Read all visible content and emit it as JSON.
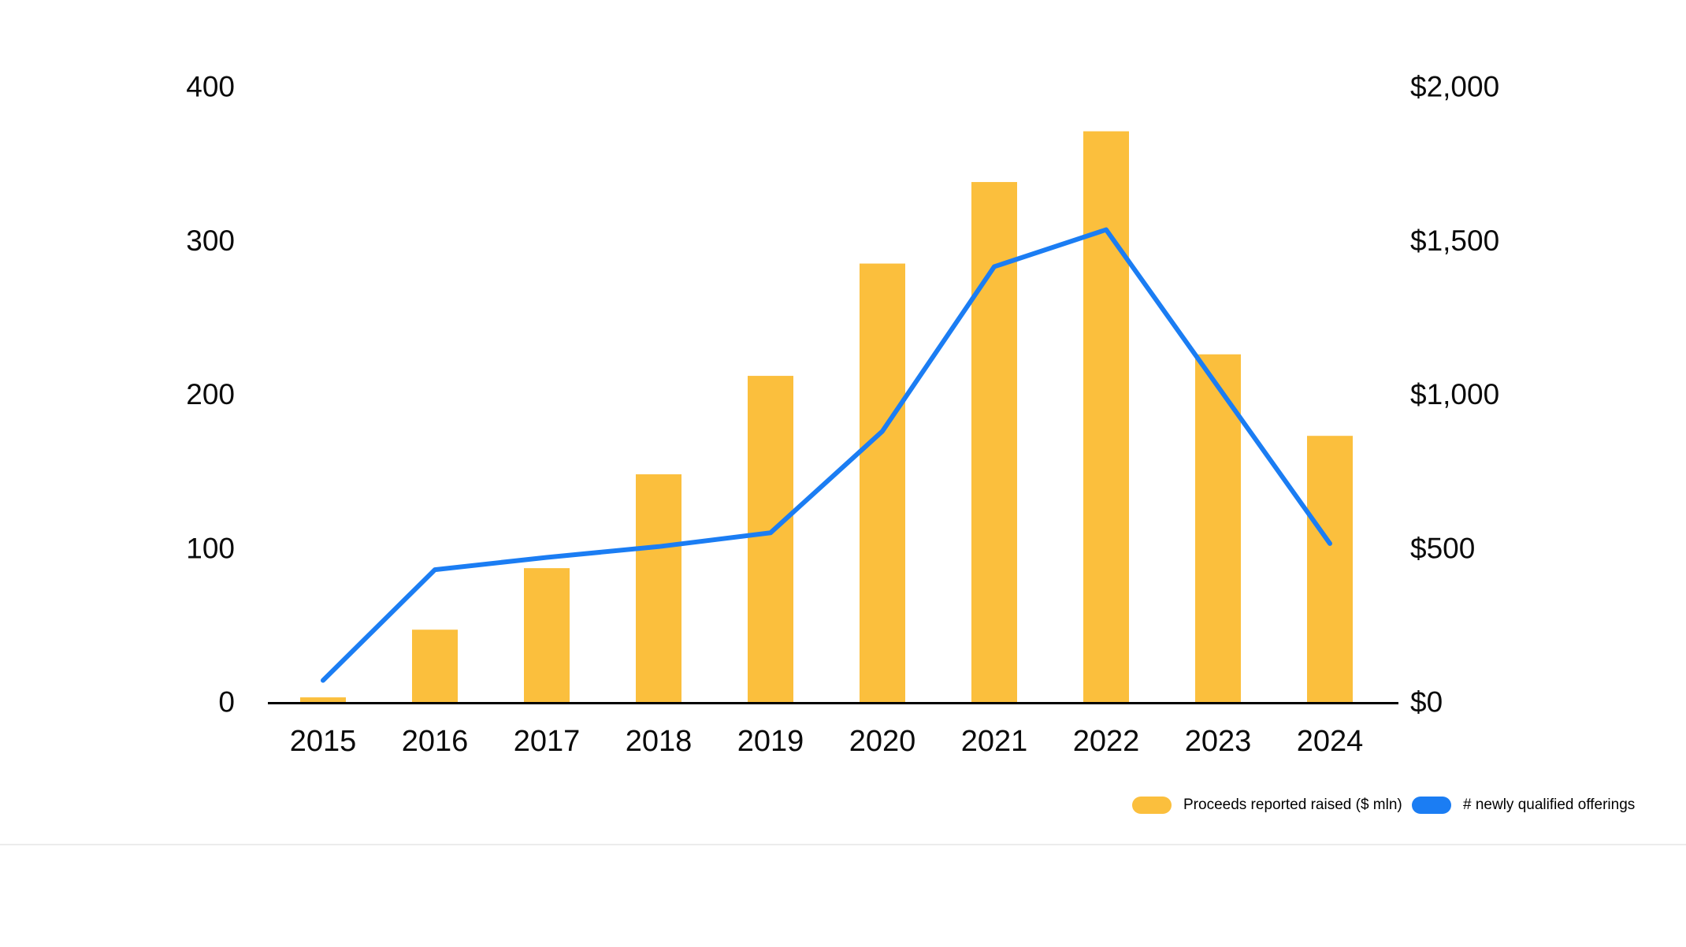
{
  "chart_data": {
    "type": "combo",
    "title": "",
    "categories": [
      "2015",
      "2016",
      "2017",
      "2018",
      "2019",
      "2020",
      "2021",
      "2022",
      "2023",
      "2024"
    ],
    "series": [
      {
        "name": "Proceeds reported raised ($ mln)",
        "type": "bar",
        "axis": "right",
        "color": "#FBBF3D",
        "values": [
          15,
          235,
          435,
          740,
          1060,
          1425,
          1690,
          1855,
          1130,
          865
        ]
      },
      {
        "name": "# newly qualified offerings",
        "type": "line",
        "axis": "left",
        "color": "#1B7DF3",
        "values": [
          14,
          86,
          94,
          101,
          110,
          176,
          283,
          307,
          205,
          103
        ]
      }
    ],
    "left_axis": {
      "min": 0,
      "max": 400,
      "ticks": [
        "0",
        "100",
        "200",
        "300",
        "400"
      ]
    },
    "right_axis": {
      "min": 0,
      "max": 2000,
      "ticks": [
        "$0",
        "$500",
        "$1,000",
        "$1,500",
        "$2,000"
      ]
    },
    "grid": "off",
    "legend_position": "bottom-right"
  },
  "legend": {
    "items": [
      {
        "label": "Proceeds reported raised ($ mln)",
        "color": "#FBBF3D"
      },
      {
        "label": "# newly qualified offerings",
        "color": "#1B7DF3"
      }
    ]
  },
  "colors": {
    "bar": "#FBBF3D",
    "line": "#1B7DF3",
    "axis": "#000000",
    "text": "#0b0b0b",
    "divider": "#ececec",
    "background": "#ffffff"
  }
}
